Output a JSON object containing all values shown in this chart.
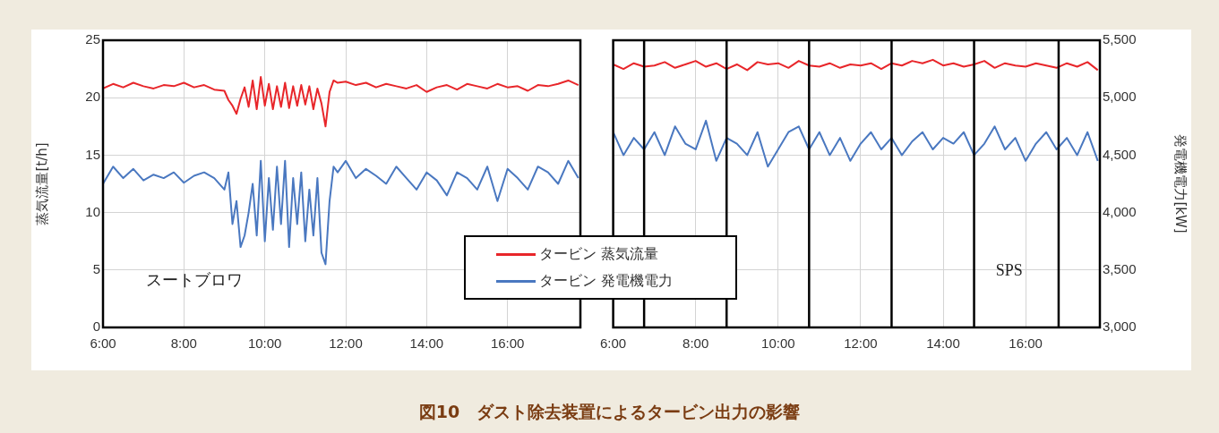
{
  "chart_data": [
    {
      "type": "line",
      "ylabel": "蒸気流量[t/h]",
      "xlim": [
        6,
        17.8
      ],
      "ylim": [
        0,
        25
      ],
      "y2lim": [
        3000,
        5500
      ],
      "xticks": [
        {
          "value": 6,
          "label": "6:00"
        },
        {
          "value": 8,
          "label": "8:00"
        },
        {
          "value": 10,
          "label": "10:00"
        },
        {
          "value": 12,
          "label": "12:00"
        },
        {
          "value": 14,
          "label": "14:00"
        },
        {
          "value": 16,
          "label": "16:00"
        }
      ],
      "yticks": [
        0,
        5,
        10,
        15,
        20,
        25
      ],
      "tick_labels": "xy",
      "grid": true,
      "legend": "bottom right",
      "x": [
        6,
        6.25,
        6.5,
        6.75,
        7,
        7.25,
        7.5,
        7.75,
        8,
        8.25,
        8.5,
        8.75,
        9,
        9.1,
        9.2,
        9.3,
        9.4,
        9.5,
        9.6,
        9.7,
        9.8,
        9.9,
        10,
        10.1,
        10.2,
        10.3,
        10.4,
        10.5,
        10.6,
        10.7,
        10.8,
        10.9,
        11,
        11.1,
        11.2,
        11.3,
        11.4,
        11.5,
        11.6,
        11.7,
        11.8,
        12,
        12.25,
        12.5,
        12.75,
        13,
        13.25,
        13.5,
        13.75,
        14,
        14.25,
        14.5,
        14.75,
        15,
        15.25,
        15.5,
        15.75,
        16,
        16.25,
        16.5,
        16.75,
        17,
        17.25,
        17.5,
        17.75
      ],
      "series": [
        {
          "name": "タービン 蒸気流量",
          "color": "#e8262a",
          "values": [
            20.8,
            21.2,
            20.9,
            21.3,
            21.0,
            20.8,
            21.1,
            21.0,
            21.3,
            20.9,
            21.1,
            20.7,
            20.6,
            19.8,
            19.3,
            18.6,
            19.9,
            20.9,
            19.2,
            21.5,
            19.0,
            21.8,
            19.3,
            21.2,
            19.0,
            21.0,
            19.2,
            21.3,
            19.1,
            21.0,
            19.3,
            21.1,
            19.4,
            21.0,
            19.0,
            20.8,
            19.5,
            17.5,
            20.5,
            21.5,
            21.3,
            21.4,
            21.1,
            21.3,
            20.9,
            21.2,
            21.0,
            20.8,
            21.1,
            20.5,
            20.9,
            21.1,
            20.7,
            21.2,
            21.0,
            20.8,
            21.2,
            20.9,
            21.0,
            20.6,
            21.1,
            21.0,
            21.2,
            21.5,
            21.1
          ]
        },
        {
          "name": "タービン 発電機電力",
          "color": "#4a78c0",
          "axis": "y2",
          "values": [
            4250,
            4400,
            4300,
            4380,
            4280,
            4330,
            4300,
            4350,
            4260,
            4320,
            4350,
            4300,
            4200,
            4350,
            3900,
            4100,
            3700,
            3800,
            4000,
            4250,
            3800,
            4450,
            3750,
            4300,
            3850,
            4400,
            3900,
            4450,
            3700,
            4300,
            3900,
            4350,
            3750,
            4200,
            3800,
            4300,
            3650,
            3550,
            4100,
            4400,
            4350,
            4450,
            4300,
            4380,
            4320,
            4250,
            4400,
            4300,
            4200,
            4350,
            4280,
            4150,
            4350,
            4300,
            4200,
            4400,
            4100,
            4380,
            4300,
            4200,
            4400,
            4350,
            4250,
            4450,
            4300
          ]
        }
      ],
      "annotations": [
        "スートブロワ"
      ]
    },
    {
      "type": "line",
      "y2label": "発電機電力[kW]",
      "xlim": [
        6,
        17.8
      ],
      "ylim": [
        0,
        25
      ],
      "y2lim": [
        3000,
        5500
      ],
      "xticks": [
        {
          "value": 6,
          "label": "6:00"
        },
        {
          "value": 8,
          "label": "8:00"
        },
        {
          "value": 10,
          "label": "10:00"
        },
        {
          "value": 12,
          "label": "12:00"
        },
        {
          "value": 14,
          "label": "14:00"
        },
        {
          "value": 16,
          "label": "16:00"
        }
      ],
      "y2ticks": [
        {
          "value": 3000,
          "label": "3,000"
        },
        {
          "value": 3500,
          "label": "3,500"
        },
        {
          "value": 4000,
          "label": "4,000"
        },
        {
          "value": 4500,
          "label": "4,500"
        },
        {
          "value": 5000,
          "label": "5,000"
        },
        {
          "value": 5500,
          "label": "5,500"
        }
      ],
      "tick_labels": "xy2",
      "grid": true,
      "x": [
        6,
        6.25,
        6.5,
        6.75,
        7,
        7.25,
        7.5,
        7.75,
        8,
        8.25,
        8.5,
        8.75,
        9,
        9.25,
        9.5,
        9.75,
        10,
        10.25,
        10.5,
        10.75,
        11,
        11.25,
        11.5,
        11.75,
        12,
        12.25,
        12.5,
        12.75,
        13,
        13.25,
        13.5,
        13.75,
        14,
        14.25,
        14.5,
        14.75,
        15,
        15.25,
        15.5,
        15.75,
        16,
        16.25,
        16.5,
        16.75,
        17,
        17.25,
        17.5,
        17.75
      ],
      "series": [
        {
          "color": "#e8262a",
          "values": [
            22.9,
            22.5,
            23.0,
            22.7,
            22.8,
            23.1,
            22.6,
            22.9,
            23.2,
            22.7,
            23.0,
            22.5,
            22.9,
            22.4,
            23.1,
            22.9,
            23.0,
            22.6,
            23.2,
            22.8,
            22.7,
            23.0,
            22.6,
            22.9,
            22.8,
            23.0,
            22.5,
            23.0,
            22.8,
            23.2,
            23.0,
            23.3,
            22.8,
            23.0,
            22.7,
            22.9,
            23.2,
            22.6,
            23.0,
            22.8,
            22.7,
            23.0,
            22.8,
            22.6,
            23.0,
            22.7,
            23.1,
            22.4
          ]
        },
        {
          "color": "#4a78c0",
          "axis": "y2",
          "values": [
            4700,
            4500,
            4650,
            4550,
            4700,
            4500,
            4750,
            4600,
            4550,
            4800,
            4450,
            4650,
            4600,
            4500,
            4700,
            4400,
            4550,
            4700,
            4750,
            4550,
            4700,
            4500,
            4650,
            4450,
            4600,
            4700,
            4550,
            4650,
            4500,
            4620,
            4700,
            4550,
            4650,
            4600,
            4700,
            4500,
            4600,
            4750,
            4550,
            4650,
            4450,
            4600,
            4700,
            4550,
            4650,
            4500,
            4700,
            4450
          ]
        }
      ],
      "ref_lines": [
        {
          "axis": "x",
          "value": 6.75,
          "color": "#000000"
        },
        {
          "axis": "x",
          "value": 8.75,
          "color": "#000000"
        },
        {
          "axis": "x",
          "value": 10.75,
          "color": "#000000"
        },
        {
          "axis": "x",
          "value": 12.75,
          "color": "#000000"
        },
        {
          "axis": "x",
          "value": 14.75,
          "color": "#000000"
        },
        {
          "axis": "x",
          "value": 16.8,
          "color": "#000000"
        }
      ],
      "annotations": [
        "SPS"
      ]
    },
    {
      "type": "other",
      "title": "図10　ダスト除去装置によるタービン出力の影響"
    }
  ]
}
